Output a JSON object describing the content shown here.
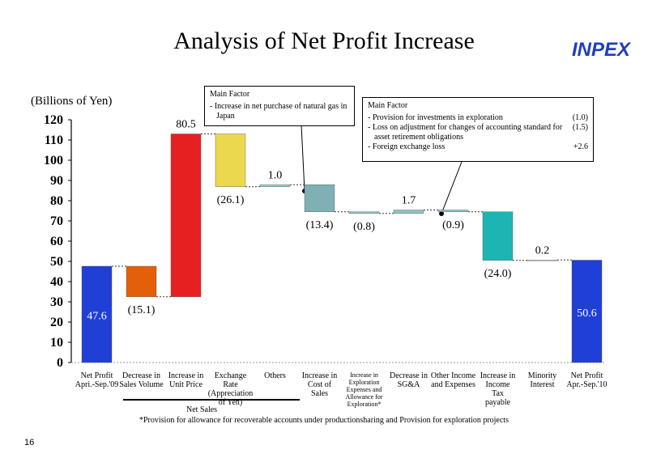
{
  "chart_data": {
    "type": "waterfall",
    "title": "Analysis of Net Profit Increase",
    "logo": "INPEX",
    "y_axis_label": "(Billions of Yen)",
    "categories": [
      "Net Profit\nApri.-Sep.'09",
      "Decrease in\nSales Volume",
      "Increase in\nUnit Price",
      "Exchange Rate\n(Appreciation\nof Yen)",
      "Others",
      "Increase in\nCost of\nSales",
      "Increase in\nExploration\nExpenses and\nAllowance for\nExploration*",
      "Decrease in\nSG&A",
      "Other Income\nand Expenses",
      "Increase in\nIncome\nTax\npayable",
      "Minority\nInterest",
      "Net Profit\nApr.-Sep.'10"
    ],
    "values": [
      47.6,
      -15.1,
      80.5,
      -26.1,
      1.0,
      -13.4,
      -0.8,
      1.7,
      -0.9,
      -24.0,
      0.2,
      50.6
    ],
    "value_labels": [
      "47.6",
      "(15.1)",
      "80.5",
      "(26.1)",
      "1.0",
      "(13.4)",
      "(0.8)",
      "1.7",
      "(0.9)",
      "(24.0)",
      "0.2",
      "50.6"
    ],
    "is_total": [
      true,
      false,
      false,
      false,
      false,
      false,
      false,
      false,
      false,
      false,
      false,
      true
    ],
    "colors": [
      "#1f3fd6",
      "#e2600a",
      "#e62020",
      "#ecd84e",
      "#9fcfcf",
      "#7fb0b4",
      "#8fc4c4",
      "#8fc4c4",
      "#8fc4c4",
      "#1fb4b4",
      "#b8dede",
      "#1f3fd6"
    ],
    "ylim": [
      0,
      120
    ],
    "yticks": [
      0,
      10,
      20,
      30,
      40,
      50,
      60,
      70,
      80,
      90,
      100,
      110,
      120
    ],
    "group_label": "Net Sales",
    "callouts": [
      {
        "title": "Main Factor",
        "items": [
          {
            "text": "- Increase in net purchase of natural gas in Japan"
          }
        ]
      },
      {
        "title": "Main Factor",
        "items": [
          {
            "text": "- Provision for investments in exploration",
            "value": "(1.0)"
          },
          {
            "text": "- Loss on adjustment for changes of accounting standard for asset retirement obligations",
            "value": "(1.5)"
          },
          {
            "text": "- Foreign exchange loss",
            "value": "+2.6"
          }
        ]
      }
    ],
    "footnote": "*Provision for allowance for recoverable accounts under productionsharing and Provision for exploration projects",
    "page_number": "16"
  }
}
